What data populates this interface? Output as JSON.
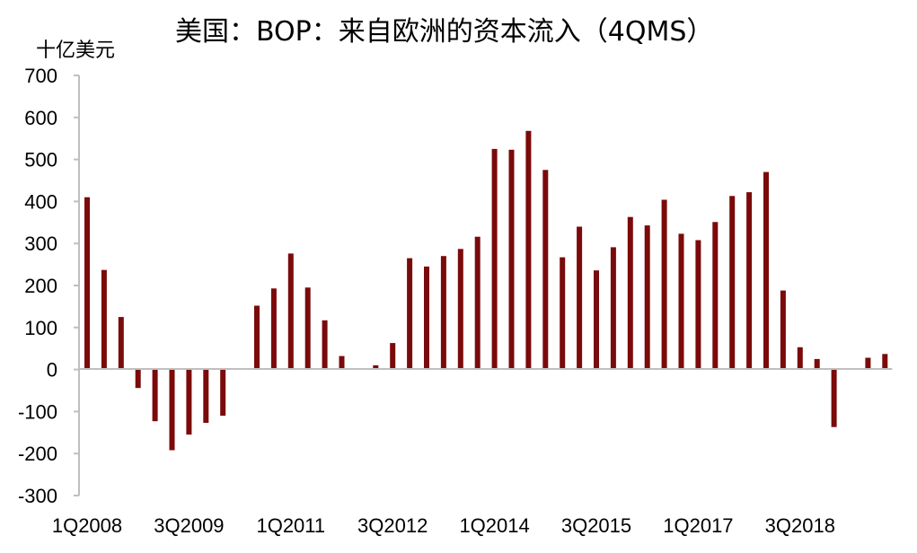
{
  "chart_data": {
    "type": "bar",
    "title": "美国：BOP：来自欧洲的资本流入（4QMS）",
    "ylabel": "十亿美元",
    "xlabel": "",
    "ylim": [
      -300,
      700
    ],
    "yticks": [
      700,
      600,
      500,
      400,
      300,
      200,
      100,
      0,
      -100,
      -200,
      -300
    ],
    "xtick_labels": [
      "1Q2008",
      "3Q2009",
      "1Q2011",
      "3Q2012",
      "1Q2014",
      "3Q2015",
      "1Q2017",
      "3Q2018"
    ],
    "bar_color": "#7b0a0a",
    "grid": false,
    "series": [
      {
        "values": [
          410,
          237,
          125,
          -44,
          -123,
          -192,
          -155,
          -127,
          -110,
          null,
          152,
          193,
          276,
          195,
          117,
          32,
          null,
          10,
          63,
          265,
          245,
          270,
          287,
          316,
          525,
          523,
          568,
          475,
          267,
          340,
          236,
          291,
          363,
          343,
          404,
          323,
          308,
          351,
          413,
          422,
          470,
          188,
          53,
          25,
          -137,
          null,
          28,
          37
        ]
      }
    ]
  }
}
